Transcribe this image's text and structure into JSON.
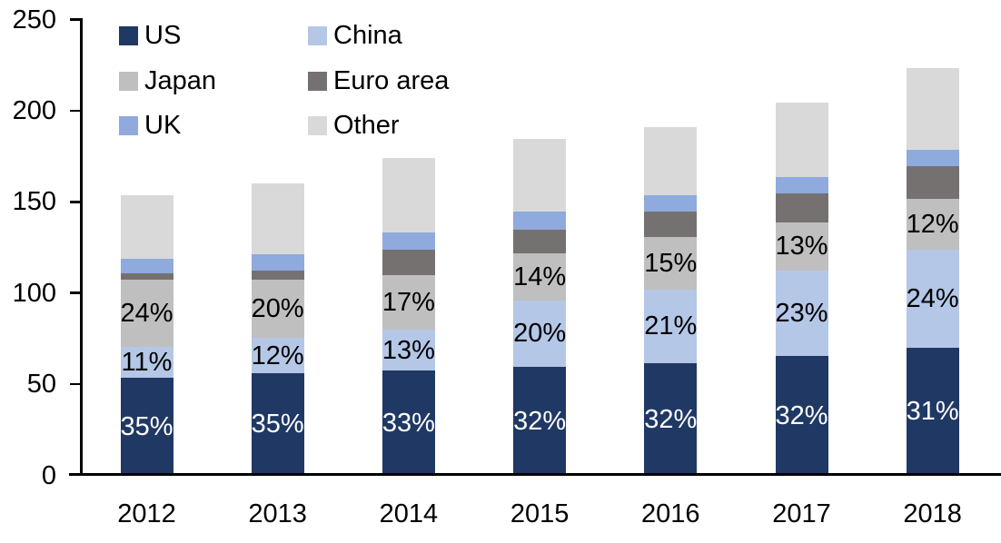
{
  "chart_data": {
    "type": "stacked-bar",
    "title": "",
    "categories": [
      "2012",
      "2013",
      "2014",
      "2015",
      "2016",
      "2017",
      "2018"
    ],
    "series": [
      {
        "name": "US",
        "color": "#1F3864",
        "label_color": "#ffffff",
        "values": [
          53.7,
          56.0,
          57.4,
          59.5,
          61.5,
          65.3,
          70.0
        ],
        "labels": [
          "35%",
          "35%",
          "33%",
          "32%",
          "32%",
          "32%",
          "31%"
        ]
      },
      {
        "name": "China",
        "color": "#B4C7E7",
        "label_color": "#000000",
        "values": [
          16.9,
          19.2,
          22.6,
          36.5,
          40.5,
          47.0,
          53.8
        ],
        "labels": [
          "11%",
          "12%",
          "13%",
          "20%",
          "21%",
          "23%",
          "24%"
        ]
      },
      {
        "name": "Japan",
        "color": "#BFBFBF",
        "label_color": "#000000",
        "values": [
          36.8,
          32.0,
          29.6,
          26.0,
          28.5,
          26.6,
          27.9
        ],
        "labels": [
          "24%",
          "20%",
          "17%",
          "14%",
          "15%",
          "13%",
          "12%"
        ]
      },
      {
        "name": "Euro area",
        "color": "#767171",
        "label_color": null,
        "values": [
          3.6,
          5.0,
          14.0,
          12.5,
          14.0,
          15.6,
          17.9
        ],
        "labels": null
      },
      {
        "name": "UK",
        "color": "#8FAADC",
        "label_color": null,
        "values": [
          8.0,
          9.0,
          9.5,
          10.0,
          9.0,
          9.3,
          9.0
        ],
        "labels": null
      },
      {
        "name": "Other",
        "color": "#D9D9D9",
        "label_color": null,
        "values": [
          34.5,
          38.8,
          40.9,
          40.0,
          37.5,
          40.7,
          44.8
        ],
        "labels": null
      }
    ],
    "stack_order_bottom_to_top": [
      "US",
      "China",
      "Japan",
      "Euro area",
      "UK",
      "Other"
    ],
    "totals_approx": [
      153.5,
      160.0,
      174.0,
      184.5,
      191.0,
      204.5,
      223.4
    ],
    "y_axis": {
      "min": 0,
      "max": 250,
      "step": 50,
      "tick_labels": [
        "0",
        "50",
        "100",
        "150",
        "200",
        "250"
      ]
    },
    "x_axis": {
      "tick_labels": [
        "2012",
        "2013",
        "2014",
        "2015",
        "2016",
        "2017",
        "2018"
      ]
    },
    "legend": {
      "position": "top-left",
      "columns": 2,
      "order": [
        "US",
        "China",
        "Japan",
        "Euro area",
        "UK",
        "Other"
      ]
    },
    "grid": false,
    "background_color": "#ffffff",
    "axis_color": "#000000"
  }
}
